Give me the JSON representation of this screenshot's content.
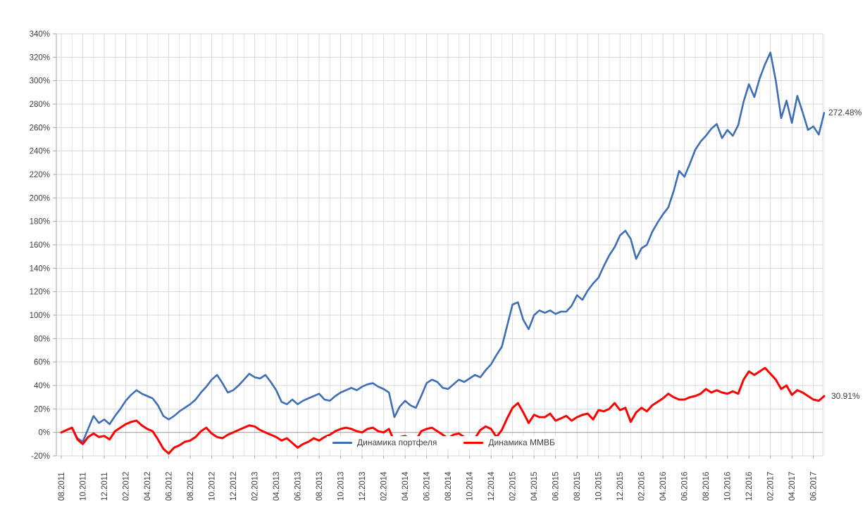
{
  "chart_data": {
    "type": "line",
    "title": "",
    "grid": true,
    "legend_position": "bottom-inside",
    "y_axis": {
      "min": -20,
      "max": 340,
      "step": 20,
      "tick_suffix": "%",
      "tick_labels": [
        "340%",
        "320%",
        "300%",
        "280%",
        "260%",
        "240%",
        "220%",
        "200%",
        "180%",
        "160%",
        "140%",
        "120%",
        "100%",
        "80%",
        "60%",
        "40%",
        "20%",
        "0%",
        "-20%"
      ]
    },
    "x_axis": {
      "tick_labels": [
        "08.2011",
        "10.2011",
        "12.2011",
        "02.2012",
        "04.2012",
        "06.2012",
        "08.2012",
        "10.2012",
        "12.2012",
        "02.2013",
        "04.2013",
        "06.2013",
        "08.2013",
        "10.2013",
        "12.2013",
        "02.2014",
        "04.2014",
        "06.2014",
        "08.2014",
        "10.2014",
        "12.2014",
        "02.2015",
        "04.2015",
        "06.2015",
        "08.2015",
        "10.2015",
        "12.2015",
        "02.2016",
        "04.2016",
        "06.2016",
        "08.2016",
        "10.2016",
        "12.2016",
        "02.2017",
        "04.2017",
        "06.2017"
      ],
      "months_per_tick": 2,
      "points_per_month": 2
    },
    "colors": {
      "portfolio": "#3e6fb4",
      "index": "#ff0000",
      "gridline": "#d9d9d9",
      "gridline_minor": "#e7e7e7",
      "axis": "#a6a6a6",
      "text": "#3f3f3f"
    },
    "series": [
      {
        "name": "Динамика портфеля",
        "color": "#3e6fb4",
        "end_label": "272.48%",
        "end_value": 272.48,
        "values": [
          0,
          2,
          4,
          -5,
          -8,
          3,
          14,
          8,
          11,
          7,
          14,
          20,
          27,
          32,
          36,
          33,
          31,
          29,
          23,
          14,
          11,
          14,
          18,
          21,
          24,
          28,
          34,
          39,
          45,
          49,
          42,
          34,
          36,
          40,
          45,
          50,
          47,
          46,
          49,
          43,
          36,
          26,
          24,
          28,
          24,
          27,
          29,
          31,
          33,
          28,
          27,
          31,
          34,
          36,
          38,
          36,
          39,
          41,
          42,
          39,
          37,
          34,
          13,
          22,
          27,
          23,
          21,
          31,
          42,
          45,
          43,
          38,
          37,
          41,
          45,
          43,
          46,
          49,
          47,
          53,
          58,
          66,
          73,
          91,
          109,
          111,
          96,
          88,
          100,
          104,
          102,
          104,
          101,
          103,
          103,
          108,
          117,
          113,
          121,
          127,
          132,
          142,
          151,
          158,
          168,
          172,
          165,
          148,
          157,
          160,
          171,
          179,
          186,
          192,
          206,
          223,
          218,
          229,
          241,
          248,
          253,
          259,
          263,
          251,
          258,
          253,
          262,
          282,
          297,
          286,
          302,
          314,
          324,
          300,
          268,
          283,
          264,
          287,
          273,
          258,
          261,
          254,
          272.48
        ]
      },
      {
        "name": "Динамика ММВБ",
        "color": "#ff0000",
        "end_label": "30.91%",
        "end_value": 30.91,
        "values": [
          0,
          2,
          4,
          -6,
          -10,
          -4,
          -1,
          -4,
          -3,
          -6,
          1,
          4,
          7,
          9,
          10,
          6,
          3,
          1,
          -6,
          -14,
          -18,
          -13,
          -11,
          -8,
          -7,
          -4,
          1,
          4,
          -1,
          -4,
          -5,
          -2,
          0,
          2,
          4,
          6,
          5,
          2,
          0,
          -2,
          -4,
          -7,
          -5,
          -9,
          -13,
          -10,
          -8,
          -5,
          -7,
          -4,
          -2,
          1,
          3,
          4,
          3,
          1,
          0,
          3,
          4,
          1,
          0,
          3,
          -8,
          -4,
          -3,
          -6,
          -7,
          1,
          3,
          4,
          1,
          -2,
          -5,
          -2,
          -1,
          -4,
          -6,
          -5,
          2,
          5,
          3,
          -4,
          2,
          12,
          21,
          25,
          17,
          8,
          15,
          13,
          13,
          16,
          10,
          12,
          14,
          10,
          13,
          15,
          16,
          11,
          19,
          18,
          20,
          25,
          19,
          21,
          9,
          17,
          21,
          18,
          23,
          26,
          29,
          33,
          30,
          28,
          28,
          30,
          31,
          33,
          37,
          34,
          36,
          34,
          33,
          35,
          33,
          45,
          52,
          49,
          52,
          55,
          50,
          45,
          37,
          40,
          32,
          36,
          34,
          31,
          28,
          27,
          30.91
        ]
      }
    ]
  }
}
